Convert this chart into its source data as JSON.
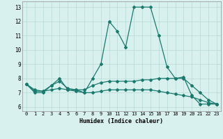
{
  "xlabel": "Humidex (Indice chaleur)",
  "x": [
    0,
    1,
    2,
    3,
    4,
    5,
    6,
    7,
    8,
    9,
    10,
    11,
    12,
    13,
    14,
    15,
    16,
    17,
    18,
    19,
    20,
    21,
    22,
    23
  ],
  "line1": [
    7.6,
    7.0,
    7.0,
    7.5,
    8.0,
    7.2,
    7.2,
    7.0,
    8.0,
    9.0,
    12.0,
    11.3,
    10.2,
    13.0,
    13.0,
    13.0,
    11.0,
    8.8,
    8.0,
    8.1,
    6.8,
    6.2,
    6.2,
    6.2
  ],
  "line2": [
    7.6,
    7.1,
    7.1,
    7.5,
    7.8,
    7.3,
    7.2,
    7.2,
    7.5,
    7.7,
    7.8,
    7.8,
    7.8,
    7.8,
    7.9,
    7.9,
    8.0,
    8.0,
    8.0,
    8.0,
    7.5,
    7.0,
    6.5,
    6.2
  ],
  "line3": [
    7.6,
    7.2,
    7.1,
    7.2,
    7.3,
    7.2,
    7.1,
    7.0,
    7.0,
    7.1,
    7.2,
    7.2,
    7.2,
    7.2,
    7.2,
    7.2,
    7.1,
    7.0,
    6.9,
    6.8,
    6.7,
    6.5,
    6.3,
    6.2
  ],
  "color": "#1a7a6e",
  "bg_color": "#d8f0ee",
  "grid_color": "#b8d8d4",
  "ylim": [
    5.7,
    13.4
  ],
  "xlim": [
    -0.5,
    23.5
  ],
  "yticks": [
    6,
    7,
    8,
    9,
    10,
    11,
    12,
    13
  ],
  "xticks": [
    0,
    1,
    2,
    3,
    4,
    5,
    6,
    7,
    8,
    9,
    10,
    11,
    12,
    13,
    14,
    15,
    16,
    17,
    18,
    19,
    20,
    21,
    22,
    23
  ],
  "label_fontsize": 5.5,
  "tick_fontsize": 5.0
}
